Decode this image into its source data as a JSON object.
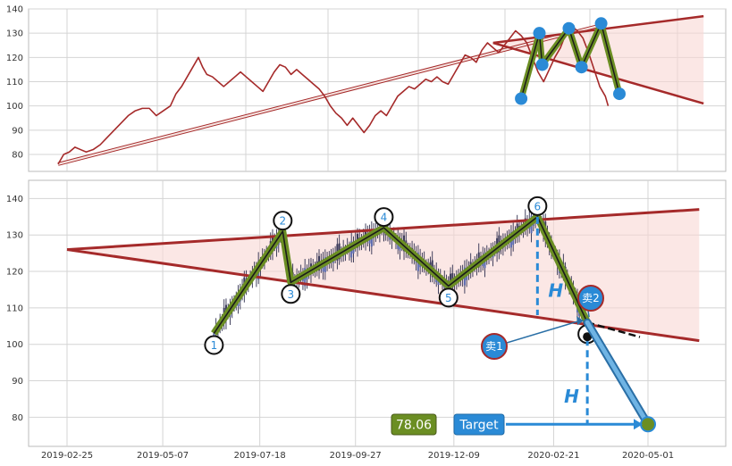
{
  "chart_data": [
    {
      "type": "line",
      "panel": "top",
      "yticks": [
        80,
        90,
        100,
        110,
        120,
        130,
        140
      ],
      "ylim": [
        73,
        140
      ],
      "grid": true,
      "series": [
        {
          "values": [
            [
              0,
              76
            ],
            [
              4,
              80
            ],
            [
              8,
              81
            ],
            [
              12,
              83
            ],
            [
              16,
              82
            ],
            [
              20,
              81
            ],
            [
              25,
              82
            ],
            [
              30,
              84
            ],
            [
              35,
              87
            ],
            [
              40,
              90
            ],
            [
              45,
              93
            ],
            [
              50,
              96
            ],
            [
              55,
              98
            ],
            [
              60,
              99
            ],
            [
              65,
              99
            ],
            [
              70,
              96
            ],
            [
              75,
              98
            ],
            [
              80,
              100
            ],
            [
              84,
              105
            ],
            [
              88,
              108
            ],
            [
              92,
              112
            ],
            [
              96,
              116
            ],
            [
              100,
              120
            ],
            [
              103,
              116
            ],
            [
              106,
              113
            ],
            [
              110,
              112
            ],
            [
              114,
              110
            ],
            [
              118,
              108
            ],
            [
              122,
              110
            ],
            [
              126,
              112
            ],
            [
              130,
              114
            ],
            [
              134,
              112
            ],
            [
              138,
              110
            ],
            [
              142,
              108
            ],
            [
              146,
              106
            ],
            [
              150,
              110
            ],
            [
              154,
              114
            ],
            [
              158,
              117
            ],
            [
              162,
              116
            ],
            [
              166,
              113
            ],
            [
              170,
              115
            ],
            [
              174,
              113
            ],
            [
              178,
              111
            ],
            [
              182,
              109
            ],
            [
              186,
              107
            ],
            [
              190,
              104
            ],
            [
              194,
              100
            ],
            [
              198,
              97
            ],
            [
              202,
              95
            ],
            [
              206,
              92
            ],
            [
              210,
              95
            ],
            [
              214,
              92
            ],
            [
              218,
              89
            ],
            [
              222,
              92
            ],
            [
              226,
              96
            ],
            [
              230,
              98
            ],
            [
              234,
              96
            ],
            [
              238,
              100
            ],
            [
              242,
              104
            ],
            [
              246,
              106
            ],
            [
              250,
              108
            ],
            [
              254,
              107
            ],
            [
              258,
              109
            ],
            [
              262,
              111
            ],
            [
              266,
              110
            ],
            [
              270,
              112
            ],
            [
              274,
              110
            ],
            [
              278,
              109
            ],
            [
              282,
              113
            ],
            [
              286,
              117
            ],
            [
              290,
              121
            ],
            [
              294,
              120
            ],
            [
              298,
              118
            ],
            [
              302,
              123
            ],
            [
              306,
              126
            ],
            [
              310,
              124
            ],
            [
              314,
              122
            ],
            [
              318,
              125
            ],
            [
              322,
              128
            ],
            [
              326,
              131
            ],
            [
              330,
              129
            ],
            [
              334,
              126
            ],
            [
              338,
              120
            ],
            [
              342,
              114
            ],
            [
              346,
              110
            ],
            [
              350,
              115
            ],
            [
              354,
              120
            ],
            [
              358,
              124
            ],
            [
              362,
              130
            ],
            [
              366,
              133
            ],
            [
              370,
              131
            ],
            [
              374,
              128
            ],
            [
              378,
              122
            ],
            [
              382,
              115
            ],
            [
              386,
              108
            ],
            [
              390,
              104
            ],
            [
              392,
              100
            ]
          ]
        }
      ],
      "pattern_points": [
        [
          330,
          103
        ],
        [
          343,
          130
        ],
        [
          345,
          117
        ],
        [
          364,
          132
        ],
        [
          373,
          116
        ],
        [
          387,
          134
        ],
        [
          400,
          105
        ]
      ],
      "lines": [
        {
          "from": [
            310,
            126
          ],
          "to": [
            460,
            137
          ]
        },
        {
          "from": [
            310,
            126
          ],
          "to": [
            460,
            101
          ]
        },
        {
          "from": [
            0,
            76
          ],
          "to": [
            385,
            133
          ]
        }
      ]
    },
    {
      "type": "candlestick",
      "panel": "bottom",
      "xticks": [
        "2019-02-25",
        "2019-05-07",
        "2019-07-18",
        "2019-09-27",
        "2019-12-09",
        "2020-02-21",
        "2020-05-01"
      ],
      "yticks": [
        80,
        90,
        100,
        110,
        120,
        130,
        140
      ],
      "ylim": [
        72,
        145
      ],
      "grid": true,
      "points": [
        {
          "label": "1",
          "x": "2019-06-14",
          "y": 103
        },
        {
          "label": "2",
          "x": "2019-08-04",
          "y": 131
        },
        {
          "label": "3",
          "x": "2019-08-10",
          "y": 117
        },
        {
          "label": "4",
          "x": "2019-10-18",
          "y": 132
        },
        {
          "label": "5",
          "x": "2019-12-05",
          "y": 116
        },
        {
          "label": "6",
          "x": "2020-02-09",
          "y": 135
        },
        {
          "label": "",
          "x": "2020-03-17",
          "y": 106
        }
      ],
      "triangle": {
        "upper": {
          "from": [
            "2019-02-25",
            126
          ],
          "to": [
            "2020-06-08",
            137
          ]
        },
        "lower": {
          "from": [
            "2019-02-25",
            126
          ],
          "to": [
            "2020-06-08",
            101
          ]
        }
      },
      "sell1": {
        "label": "卖1",
        "x": "2020-03-15",
        "y": 106
      },
      "sell2": {
        "label": "卖2",
        "x": "2020-03-18",
        "y": 113
      },
      "target": {
        "label": "Target",
        "value": "78.06",
        "x": "2020-05-01",
        "y": 78.06
      },
      "height_label": "H"
    }
  ]
}
